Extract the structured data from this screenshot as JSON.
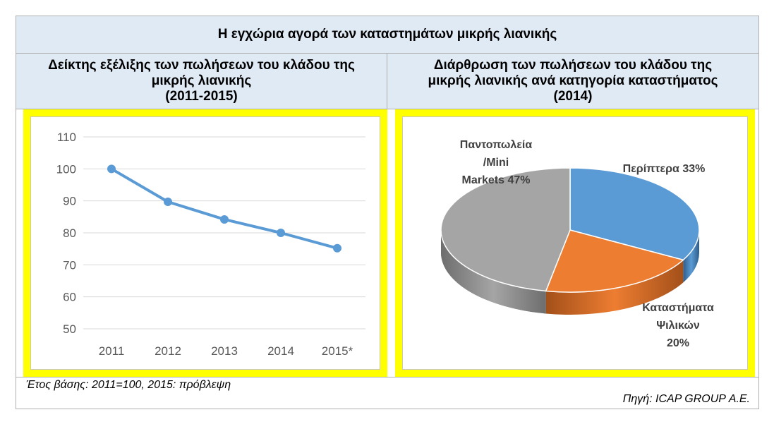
{
  "header": {
    "title": "Η εγχώρια αγορά των καταστημάτων μικρής λιανικής"
  },
  "left_panel": {
    "heading_lines": [
      "Δείκτης εξέλιξης των πωλήσεων του κλάδου της",
      "μικρής λιανικής",
      "(2011-2015)"
    ]
  },
  "right_panel": {
    "heading_lines": [
      "Διάρθρωση των πωλήσεων του κλάδου της",
      "μικρής λιανικής ανά κατηγορία καταστήματος",
      "(2014)"
    ]
  },
  "footer": {
    "note": "Έτος βάσης: 2011=100, 2015: πρόβλεψη",
    "source": "Πηγή: ICAP GROUP Α.Ε."
  },
  "colors": {
    "line": "#5b9bd5",
    "pie_blue": "#5b9bd5",
    "pie_orange": "#ed7d31",
    "pie_gray": "#a5a5a5",
    "panel_border": "#ffff00",
    "header_bg": "#dfeaf5"
  },
  "chart_data": [
    {
      "type": "line",
      "title": "",
      "x": [
        "2011",
        "2012",
        "2013",
        "2014",
        "2015*"
      ],
      "series": [
        {
          "values": [
            100,
            89.7,
            84.2,
            80,
            75.2
          ]
        }
      ],
      "ylim": [
        50,
        110
      ],
      "yticks": [
        110,
        100,
        90,
        80,
        70,
        60,
        50
      ],
      "xlabel": "",
      "ylabel": "",
      "grid": true
    },
    {
      "type": "pie",
      "title": "",
      "slices": [
        {
          "label_lines": [
            "Περίπτερα 33%"
          ],
          "value": 33
        },
        {
          "label_lines": [
            "Καταστήματα",
            "Ψιλικών",
            "20%"
          ],
          "value": 20
        },
        {
          "label_lines": [
            "Παντοπωλεία",
            "/Mini",
            "Markets  47%"
          ],
          "value": 47
        }
      ],
      "style": "3d"
    }
  ]
}
